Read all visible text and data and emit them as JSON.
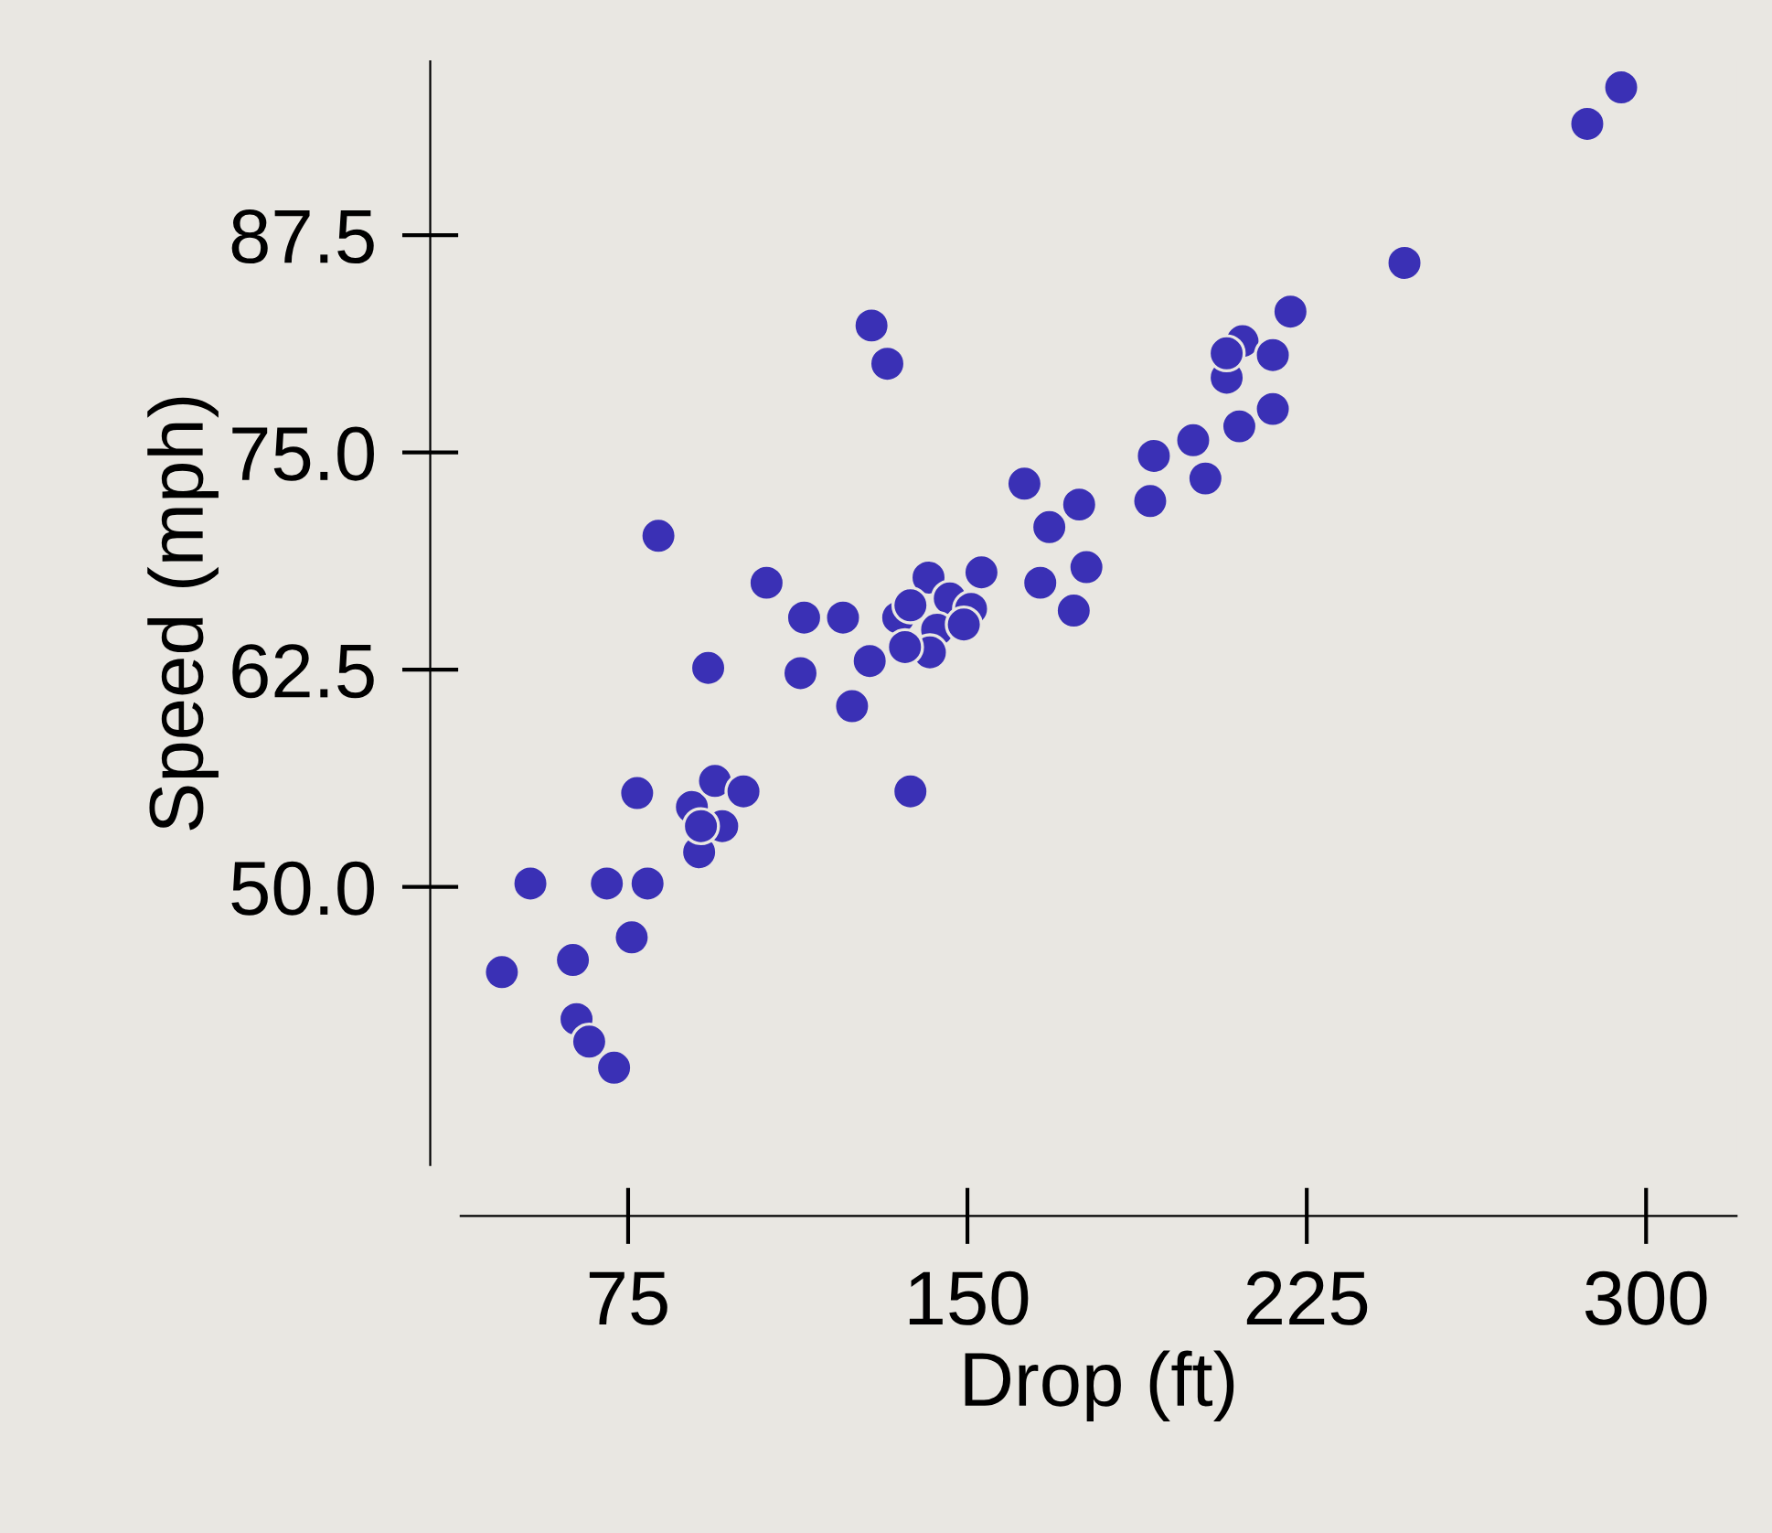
{
  "chart_data": {
    "type": "scatter",
    "xlabel": "Drop (ft)",
    "ylabel": "Speed (mph)",
    "xlim": [
      38,
      320
    ],
    "ylim": [
      34,
      97.5
    ],
    "xticks": [
      75,
      150,
      225,
      300
    ],
    "yticks": [
      {
        "value": 50,
        "label": "50.0"
      },
      {
        "value": 62.5,
        "label": "62.5"
      },
      {
        "value": 75,
        "label": "75.0"
      },
      {
        "value": 87.5,
        "label": "87.5"
      }
    ],
    "marker": "circle",
    "grid": false,
    "legend": false,
    "series": [
      {
        "color": "#3a30b5",
        "x": [
          47.1,
          53.4,
          62.8,
          63.6,
          66.4,
          71.9,
          70.3,
          75.8,
          79.3,
          77.0,
          81.7,
          92.7,
          89.1,
          90.7,
          94.2,
          95.8,
          100.5,
          91.1,
          105.6,
          113.9,
          113.1,
          122.5,
          128.4,
          124.5,
          137.4,
          128.8,
          132.3,
          134.7,
          141.4,
          153.1,
          137.4,
          146.1,
          150.8,
          143.3,
          141.7,
          136.2,
          149.2,
          162.6,
          174.7,
          168.1,
          166.1,
          176.3,
          173.5,
          191.2,
          190.4,
          199.9,
          202.6,
          210.1,
          217.5,
          207.3,
          210.8,
          217.5,
          221.4,
          207.3,
          246.6,
          287.0,
          294.5
        ],
        "values": [
          45.1,
          50.2,
          45.8,
          42.4,
          41.1,
          39.6,
          50.2,
          47.1,
          50.2,
          55.4,
          70.2,
          62.6,
          54.6,
          52.0,
          56.1,
          53.5,
          55.5,
          53.5,
          67.5,
          65.5,
          62.3,
          65.5,
          63.0,
          60.4,
          55.5,
          82.3,
          80.1,
          65.5,
          67.8,
          68.1,
          66.2,
          66.6,
          66.0,
          64.8,
          63.5,
          63.8,
          65.1,
          73.2,
          72.0,
          70.7,
          67.5,
          68.4,
          65.9,
          74.8,
          72.2,
          75.7,
          73.5,
          76.5,
          77.5,
          79.3,
          81.4,
          80.6,
          83.1,
          80.7,
          85.9,
          93.9,
          96.0
        ]
      }
    ]
  }
}
